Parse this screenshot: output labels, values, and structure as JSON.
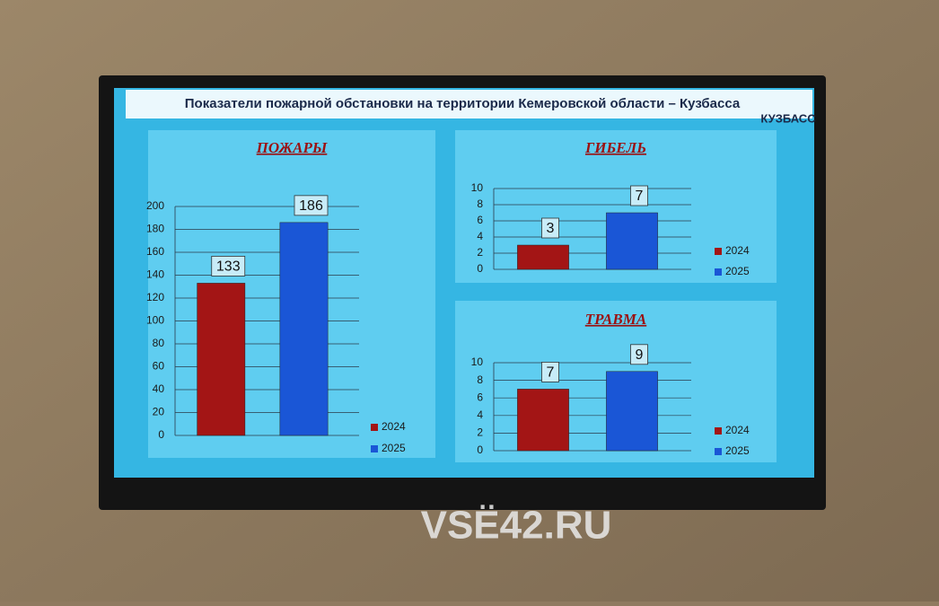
{
  "slide_title": "Показатели пожарной обстановки на территории Кемеровской области – Кузбасса",
  "logo": "КУЗБАСС",
  "watermark": "VSË42.RU",
  "chart_data": [
    {
      "type": "bar",
      "title": "ПОЖАРЫ",
      "categories": [
        null
      ],
      "series": [
        {
          "name": "2024",
          "color": "#a31515",
          "values": [
            133
          ]
        },
        {
          "name": "2025",
          "color": "#1a56d6",
          "values": [
            186
          ]
        }
      ],
      "ylim": [
        0,
        200
      ],
      "yticks": [
        0,
        20,
        40,
        60,
        80,
        100,
        120,
        140,
        160,
        180,
        200
      ],
      "grid": true,
      "legend": "bottom-right"
    },
    {
      "type": "bar",
      "title": "ГИБЕЛЬ",
      "categories": [
        null
      ],
      "series": [
        {
          "name": "2024",
          "color": "#a31515",
          "values": [
            3
          ]
        },
        {
          "name": "2025",
          "color": "#1a56d6",
          "values": [
            7
          ]
        }
      ],
      "ylim": [
        0,
        10
      ],
      "yticks": [
        0,
        2,
        4,
        6,
        8,
        10
      ],
      "grid": true,
      "legend": "right"
    },
    {
      "type": "bar",
      "title": "ТРАВМА",
      "categories": [
        null
      ],
      "series": [
        {
          "name": "2024",
          "color": "#a31515",
          "values": [
            7
          ]
        },
        {
          "name": "2025",
          "color": "#1a56d6",
          "values": [
            9
          ]
        }
      ],
      "ylim": [
        0,
        10
      ],
      "yticks": [
        0,
        2,
        4,
        6,
        8,
        10
      ],
      "grid": true,
      "legend": "right"
    }
  ]
}
